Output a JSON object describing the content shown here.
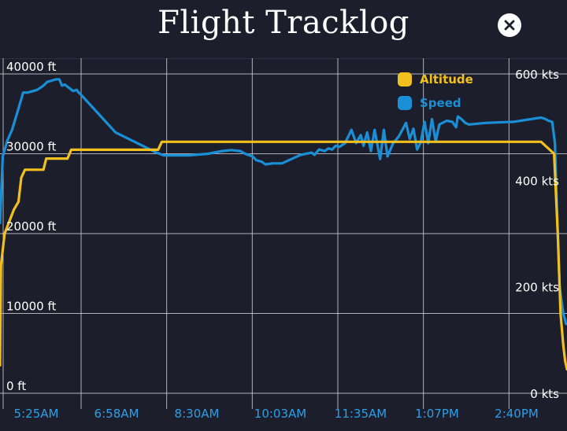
{
  "header": {
    "title": "Flight Tracklog"
  },
  "close_icon": "close-icon",
  "colors": {
    "altitude": "#f2c01e",
    "speed": "#1a8fd6",
    "grid": "#c9ccd6",
    "axis_text": "#ffffff",
    "x_tick_text": "#2a9fe8",
    "background": "#1c1f2b"
  },
  "chart_data": {
    "type": "line",
    "title": "",
    "legend_position": "top-right",
    "grid": true,
    "x_ticks": [
      "5:25AM",
      "6:58AM",
      "8:30AM",
      "10:03AM",
      "11:35AM",
      "1:07PM",
      "2:40PM"
    ],
    "x_range_minutes": [
      325,
      938
    ],
    "y_left": {
      "range": [
        0,
        40000
      ],
      "ticks": [
        "0 ft",
        "10000 ft",
        "20000 ft",
        "30000 ft",
        "40000 ft"
      ]
    },
    "y_right": {
      "range": [
        0,
        600
      ],
      "ticks": [
        "0 kts",
        "200 kts",
        "400 kts",
        "600 kts"
      ]
    },
    "series": [
      {
        "name": "Altitude",
        "axis": "left",
        "x": [
          325,
          326,
          330,
          340,
          345,
          348,
          352,
          356,
          360,
          372,
          375,
          390,
          398,
          402,
          440,
          490,
          496,
          500,
          540,
          580,
          640,
          700,
          730,
          760,
          800,
          836,
          850,
          870,
          910,
          924,
          928,
          931,
          934,
          936,
          938
        ],
        "y": [
          3500,
          16000,
          20000,
          23000,
          24000,
          27000,
          28000,
          28000,
          28000,
          28000,
          29400,
          29400,
          29400,
          30500,
          30500,
          30500,
          30500,
          31500,
          31500,
          31500,
          31500,
          31500,
          31500,
          31500,
          31500,
          31500,
          31500,
          31500,
          31500,
          30000,
          20000,
          10000,
          6000,
          4000,
          3000
        ]
      },
      {
        "name": "Speed",
        "axis": "right",
        "x": [
          325,
          328,
          333,
          338,
          345,
          350,
          355,
          365,
          372,
          376,
          382,
          386,
          389,
          392,
          395,
          404,
          408,
          410,
          412,
          450,
          485,
          493,
          502,
          530,
          550,
          565,
          575,
          585,
          590,
          598,
          602,
          608,
          612,
          620,
          630,
          650,
          662,
          665,
          670,
          676,
          680,
          684,
          688,
          692,
          698,
          705,
          710,
          715,
          718,
          722,
          726,
          730,
          736,
          740,
          744,
          750,
          756,
          760,
          764,
          768,
          772,
          776,
          780,
          784,
          788,
          792,
          796,
          800,
          808,
          814,
          818,
          820,
          824,
          828,
          832,
          850,
          880,
          910,
          915,
          918,
          922,
          925,
          927,
          930,
          934,
          937
        ],
        "y": [
          320,
          445,
          475,
          495,
          535,
          565,
          565,
          570,
          578,
          585,
          588,
          590,
          590,
          578,
          580,
          568,
          570,
          565,
          562,
          490,
          460,
          453,
          447,
          447,
          450,
          455,
          457,
          455,
          450,
          445,
          438,
          435,
          430,
          432,
          432,
          448,
          452,
          448,
          458,
          455,
          460,
          458,
          465,
          463,
          470,
          495,
          470,
          485,
          465,
          490,
          455,
          495,
          440,
          495,
          445,
          470,
          482,
          495,
          508,
          478,
          497,
          458,
          472,
          510,
          470,
          515,
          473,
          505,
          512,
          510,
          500,
          520,
          515,
          508,
          505,
          508,
          510,
          518,
          515,
          512,
          510,
          470,
          350,
          200,
          150,
          130
        ]
      }
    ]
  }
}
